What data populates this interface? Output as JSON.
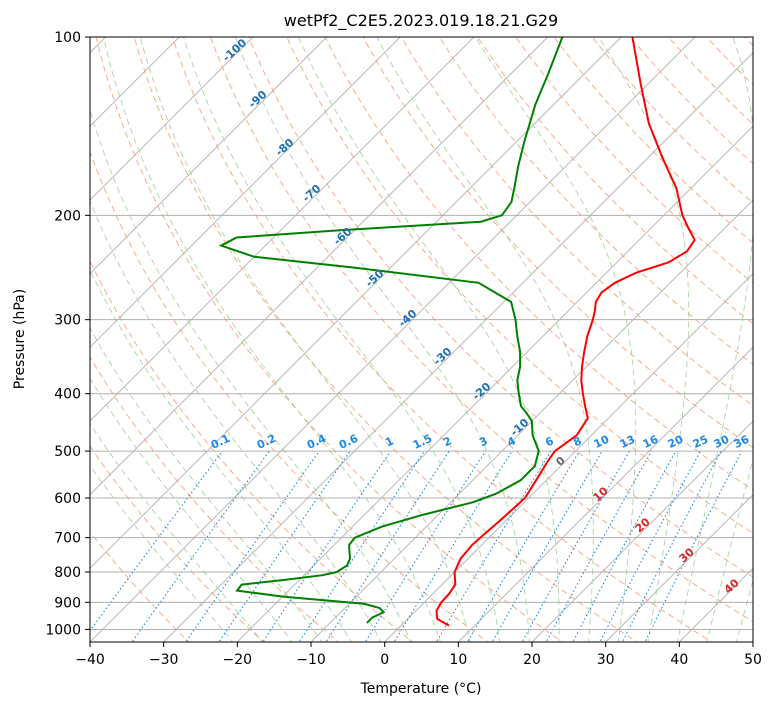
{
  "chart_data": {
    "type": "line",
    "subtype": "skew-t log-p diagram",
    "title": "wetPf2_C2E5.2023.019.18.21.G29",
    "xlabel": "Temperature (°C)",
    "ylabel": "Pressure (hPa)",
    "xlim": [
      -40,
      50
    ],
    "ylim": [
      1050,
      100
    ],
    "y_scale": "log",
    "x_ticks": [
      "−40",
      "−30",
      "−20",
      "−10",
      "0",
      "10",
      "20",
      "30",
      "40",
      "50"
    ],
    "y_ticks": [
      "100",
      "200",
      "300",
      "400",
      "500",
      "600",
      "700",
      "800",
      "900",
      "1000"
    ],
    "grid": true,
    "series": [
      {
        "color": "#ff0000",
        "role": "temperature",
        "pressure": [
          985,
          960,
          930,
          900,
          870,
          840,
          800,
          760,
          720,
          700,
          650,
          600,
          560,
          520,
          500,
          470,
          440,
          420,
          400,
          380,
          360,
          340,
          320,
          300,
          290,
          280,
          270,
          260,
          250,
          240,
          230,
          220,
          210,
          200,
          180,
          160,
          140,
          120,
          100
        ],
        "values": [
          6.5,
          4.0,
          2.8,
          2.3,
          2.2,
          1.8,
          0.0,
          -1.0,
          -1.3,
          -1.2,
          -0.8,
          -0.5,
          -1.4,
          -2.4,
          -2.8,
          -2.0,
          -2.8,
          -4.8,
          -6.8,
          -8.8,
          -10.6,
          -12.3,
          -14.0,
          -15.5,
          -16.4,
          -17.5,
          -18.0,
          -17.5,
          -16.0,
          -13.0,
          -12.0,
          -12.5,
          -15.0,
          -17.5,
          -22.0,
          -28.0,
          -34.5,
          -41.0,
          -48.5
        ]
      },
      {
        "color": "#008000",
        "role": "dewpoint",
        "pressure": [
          975,
          955,
          935,
          920,
          905,
          880,
          860,
          840,
          825,
          810,
          800,
          780,
          760,
          740,
          720,
          700,
          670,
          640,
          610,
          590,
          560,
          530,
          500,
          470,
          445,
          430,
          420,
          400,
          380,
          360,
          340,
          320,
          300,
          280,
          260,
          245,
          235,
          225,
          218,
          212,
          205,
          200,
          190,
          180,
          165,
          150,
          130,
          115,
          100
        ],
        "values": [
          -5.0,
          -5.0,
          -4.2,
          -5.3,
          -8.0,
          -20.0,
          -27.0,
          -27.2,
          -22.0,
          -17.5,
          -16.0,
          -15.5,
          -16.0,
          -17.0,
          -18.0,
          -18.2,
          -16.0,
          -12.0,
          -7.0,
          -5.0,
          -3.5,
          -3.5,
          -5.0,
          -8.0,
          -10.0,
          -12.0,
          -13.5,
          -15.5,
          -17.5,
          -19.0,
          -21.0,
          -23.5,
          -26.0,
          -29.0,
          -36.0,
          -55.0,
          -70.0,
          -76.0,
          -75.0,
          -62.0,
          -44.0,
          -42.0,
          -42.5,
          -44.0,
          -46.5,
          -49.0,
          -52.5,
          -55.0,
          -58.0
        ]
      }
    ],
    "dry_adiabat_labels": [
      "-100",
      "-90",
      "-80",
      "-70",
      "-60",
      "-50",
      "-40",
      "-30",
      "-20",
      "-10"
    ],
    "moist_adiabat_labels": [
      "0",
      "10",
      "20",
      "30",
      "40"
    ],
    "mixing_ratio_labels": [
      "0.1",
      "0.2",
      "0.4",
      "0.6",
      "1",
      "1.5",
      "2",
      "3",
      "4",
      "6",
      "8",
      "10",
      "13",
      "16",
      "20",
      "25",
      "30",
      "36"
    ],
    "mixing_ratio_values": [
      0.1,
      0.2,
      0.4,
      0.6,
      1,
      1.5,
      2,
      3,
      4,
      6,
      8,
      10,
      13,
      16,
      20,
      25,
      30,
      36
    ],
    "colors": {
      "temperature": "#ff0000",
      "dewpoint": "#008000",
      "isotherm": "#b0b0b0",
      "dry_adiabat": "#f4a582",
      "moist_adiabat": "#a8d5a2",
      "mixing_ratio": "#1e88e5",
      "dry_label": "#1f6fb5",
      "moist_label": "#d62728"
    }
  }
}
